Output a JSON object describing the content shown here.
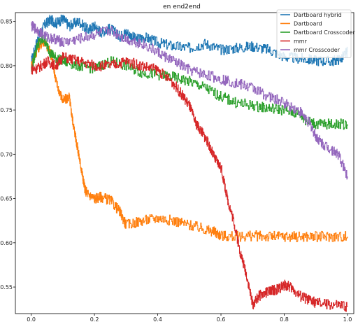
{
  "chart_data": {
    "type": "line",
    "title": "en end2end",
    "xlabel": "",
    "ylabel": "",
    "xlim": [
      -0.05,
      1.02
    ],
    "ylim": [
      0.52,
      0.86
    ],
    "xticks": [
      "0.0",
      "0.2",
      "0.4",
      "0.6",
      "0.8",
      "1.0"
    ],
    "xtick_values": [
      0.0,
      0.2,
      0.4,
      0.6,
      0.8,
      1.0
    ],
    "yticks": [
      "0.55",
      "0.60",
      "0.65",
      "0.70",
      "0.75",
      "0.80",
      "0.85"
    ],
    "ytick_values": [
      0.55,
      0.6,
      0.65,
      0.7,
      0.75,
      0.8,
      0.85
    ],
    "grid": false,
    "legend_position": "top-right",
    "series": [
      {
        "name": "Dartboard hybrid",
        "color": "#1f77b4",
        "x": [
          0.0,
          0.02,
          0.04,
          0.06,
          0.08,
          0.1,
          0.12,
          0.15,
          0.18,
          0.2,
          0.22,
          0.25,
          0.28,
          0.3,
          0.33,
          0.36,
          0.4,
          0.45,
          0.5,
          0.55,
          0.6,
          0.65,
          0.7,
          0.75,
          0.8,
          0.85,
          0.9,
          0.95,
          0.98,
          1.0
        ],
        "y": [
          0.805,
          0.83,
          0.845,
          0.852,
          0.848,
          0.853,
          0.845,
          0.85,
          0.84,
          0.845,
          0.838,
          0.842,
          0.833,
          0.838,
          0.83,
          0.832,
          0.826,
          0.822,
          0.82,
          0.825,
          0.818,
          0.82,
          0.822,
          0.818,
          0.81,
          0.808,
          0.806,
          0.805,
          0.808,
          0.816
        ]
      },
      {
        "name": "Dartboard",
        "color": "#ff7f0e",
        "x": [
          0.0,
          0.02,
          0.04,
          0.06,
          0.07,
          0.08,
          0.1,
          0.12,
          0.13,
          0.14,
          0.15,
          0.16,
          0.17,
          0.18,
          0.2,
          0.22,
          0.25,
          0.28,
          0.3,
          0.35,
          0.4,
          0.45,
          0.5,
          0.55,
          0.58,
          0.6,
          0.65,
          0.7,
          0.75,
          0.8,
          0.85,
          0.9,
          0.95,
          1.0
        ],
        "y": [
          0.8,
          0.82,
          0.828,
          0.815,
          0.8,
          0.78,
          0.76,
          0.765,
          0.74,
          0.72,
          0.7,
          0.68,
          0.66,
          0.655,
          0.65,
          0.652,
          0.648,
          0.635,
          0.62,
          0.625,
          0.628,
          0.625,
          0.62,
          0.615,
          0.612,
          0.608,
          0.607,
          0.608,
          0.607,
          0.607,
          0.607,
          0.607,
          0.607,
          0.607
        ]
      },
      {
        "name": "Dartboard Crosscoder",
        "color": "#2ca02c",
        "x": [
          0.0,
          0.02,
          0.04,
          0.06,
          0.08,
          0.1,
          0.15,
          0.2,
          0.25,
          0.3,
          0.35,
          0.4,
          0.45,
          0.5,
          0.55,
          0.6,
          0.65,
          0.7,
          0.75,
          0.8,
          0.85,
          0.87,
          0.9,
          0.95,
          1.0
        ],
        "y": [
          0.795,
          0.825,
          0.83,
          0.815,
          0.808,
          0.805,
          0.8,
          0.797,
          0.805,
          0.8,
          0.792,
          0.79,
          0.787,
          0.782,
          0.775,
          0.765,
          0.758,
          0.755,
          0.752,
          0.75,
          0.745,
          0.738,
          0.734,
          0.734,
          0.734
        ]
      },
      {
        "name": "mmr",
        "color": "#d62728",
        "x": [
          0.0,
          0.02,
          0.05,
          0.08,
          0.1,
          0.15,
          0.2,
          0.25,
          0.3,
          0.35,
          0.4,
          0.45,
          0.48,
          0.5,
          0.52,
          0.54,
          0.56,
          0.58,
          0.6,
          0.62,
          0.64,
          0.66,
          0.68,
          0.7,
          0.72,
          0.75,
          0.78,
          0.8,
          0.82,
          0.85,
          0.88,
          0.9,
          0.95,
          1.0
        ],
        "y": [
          0.796,
          0.797,
          0.805,
          0.8,
          0.81,
          0.805,
          0.8,
          0.8,
          0.805,
          0.8,
          0.795,
          0.78,
          0.765,
          0.755,
          0.735,
          0.725,
          0.712,
          0.695,
          0.685,
          0.65,
          0.625,
          0.59,
          0.565,
          0.53,
          0.54,
          0.545,
          0.548,
          0.552,
          0.55,
          0.54,
          0.535,
          0.532,
          0.53,
          0.528
        ]
      },
      {
        "name": "mmr Crosscoder",
        "color": "#9467bd",
        "x": [
          0.0,
          0.02,
          0.05,
          0.08,
          0.1,
          0.15,
          0.2,
          0.25,
          0.3,
          0.35,
          0.4,
          0.45,
          0.5,
          0.55,
          0.6,
          0.65,
          0.7,
          0.75,
          0.8,
          0.85,
          0.88,
          0.9,
          0.92,
          0.95,
          0.97,
          1.0
        ],
        "y": [
          0.845,
          0.84,
          0.832,
          0.83,
          0.826,
          0.83,
          0.835,
          0.84,
          0.83,
          0.825,
          0.815,
          0.805,
          0.795,
          0.79,
          0.785,
          0.78,
          0.775,
          0.765,
          0.758,
          0.748,
          0.735,
          0.72,
          0.712,
          0.705,
          0.7,
          0.675
        ]
      }
    ]
  }
}
